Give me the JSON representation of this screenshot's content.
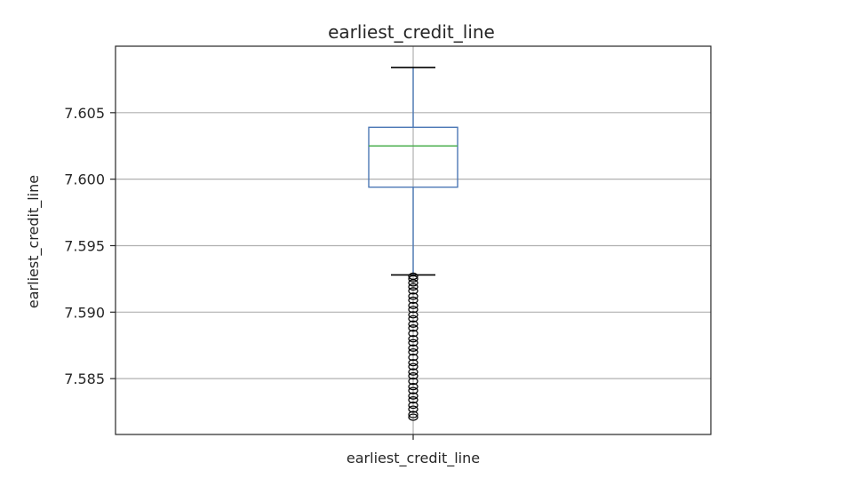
{
  "chart_data": {
    "type": "box",
    "title": "earliest_credit_line",
    "xlabel": "",
    "ylabel": "earliest_credit_line",
    "categories": [
      "earliest_credit_line"
    ],
    "ylim": [
      7.5808,
      7.61
    ],
    "yticks": [
      7.585,
      7.59,
      7.595,
      7.6,
      7.605
    ],
    "ytick_labels": [
      "7.585",
      "7.590",
      "7.595",
      "7.600",
      "7.605"
    ],
    "grid": true,
    "boxes": [
      {
        "name": "earliest_credit_line",
        "whisker_low": 7.5928,
        "q1": 7.5994,
        "median": 7.6025,
        "q3": 7.6039,
        "whisker_high": 7.6084,
        "outliers": [
          7.5927,
          7.5925,
          7.5922,
          7.5919,
          7.5916,
          7.5912,
          7.5909,
          7.5905,
          7.5902,
          7.5898,
          7.5895,
          7.5891,
          7.5888,
          7.5884,
          7.588,
          7.5877,
          7.5873,
          7.587,
          7.5866,
          7.5862,
          7.5859,
          7.5855,
          7.5852,
          7.5848,
          7.5844,
          7.5841,
          7.5837,
          7.5834,
          7.583,
          7.5827,
          7.5823,
          7.5821
        ]
      }
    ],
    "colors": {
      "box": "#4c78b5",
      "median": "#4caf50",
      "whisker_cap": "#000000",
      "outlier": "#000000",
      "grid": "#b0b0b0",
      "axis": "#262626"
    }
  }
}
